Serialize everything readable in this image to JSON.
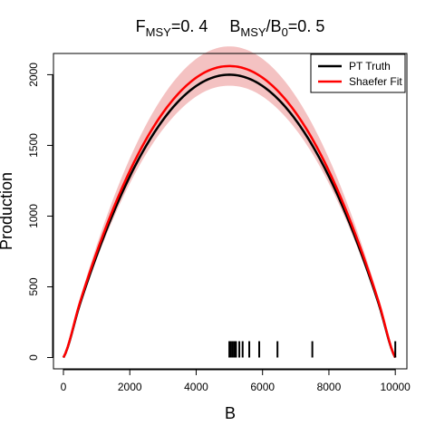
{
  "chart_data": {
    "type": "line",
    "title": {
      "f_main": "F",
      "f_sub": "MSY",
      "f_value": "=0. 4",
      "b_main": "B",
      "b_sub": "MSY",
      "b_mid": "/B",
      "b_sub2": "0",
      "b_value": "=0. 5"
    },
    "xlabel": "B",
    "ylabel": "Production",
    "xlim": [
      -300,
      10350
    ],
    "ylim": [
      -80,
      2150
    ],
    "xticks": [
      0,
      2000,
      4000,
      6000,
      8000,
      10000
    ],
    "yticks": [
      0,
      500,
      1000,
      1500,
      2000
    ],
    "grid": false,
    "legend_position": "top-right",
    "series": [
      {
        "name": "PT Truth",
        "color": "#000000",
        "x": [
          0,
          500,
          1000,
          1500,
          2000,
          2500,
          3000,
          3500,
          4000,
          4500,
          5000,
          5500,
          6000,
          6500,
          7000,
          7500,
          8000,
          8500,
          9000,
          9500,
          10000
        ],
        "y": [
          0,
          380,
          720,
          1020,
          1280,
          1500,
          1680,
          1820,
          1920,
          1980,
          2000,
          1980,
          1920,
          1820,
          1680,
          1500,
          1280,
          1020,
          720,
          380,
          0
        ]
      },
      {
        "name": "Shaefer Fit",
        "color": "#ff0000",
        "x": [
          0,
          500,
          1000,
          1500,
          2000,
          2500,
          3000,
          3500,
          4000,
          4500,
          5000,
          5500,
          6000,
          6500,
          7000,
          7500,
          8000,
          8500,
          9000,
          9500,
          10000
        ],
        "y": [
          0,
          392,
          742,
          1051,
          1319,
          1546,
          1731,
          1875,
          1979,
          2041,
          2061,
          2041,
          1979,
          1875,
          1731,
          1546,
          1319,
          1051,
          742,
          392,
          0
        ],
        "band_upper": [
          0,
          418,
          792,
          1122,
          1408,
          1650,
          1848,
          2002,
          2112,
          2178,
          2200,
          2178,
          2112,
          2002,
          1848,
          1650,
          1408,
          1122,
          792,
          418,
          0
        ],
        "band_lower": [
          0,
          366,
          692,
          980,
          1230,
          1442,
          1614,
          1748,
          1846,
          1904,
          1922,
          1904,
          1846,
          1748,
          1614,
          1442,
          1230,
          980,
          692,
          366,
          0
        ],
        "band_color": "#f4c2c2"
      }
    ],
    "rug_x": [
      5000,
      5050,
      5100,
      5150,
      5200,
      5300,
      5400,
      5600,
      5900,
      6450,
      7500,
      10000
    ]
  }
}
